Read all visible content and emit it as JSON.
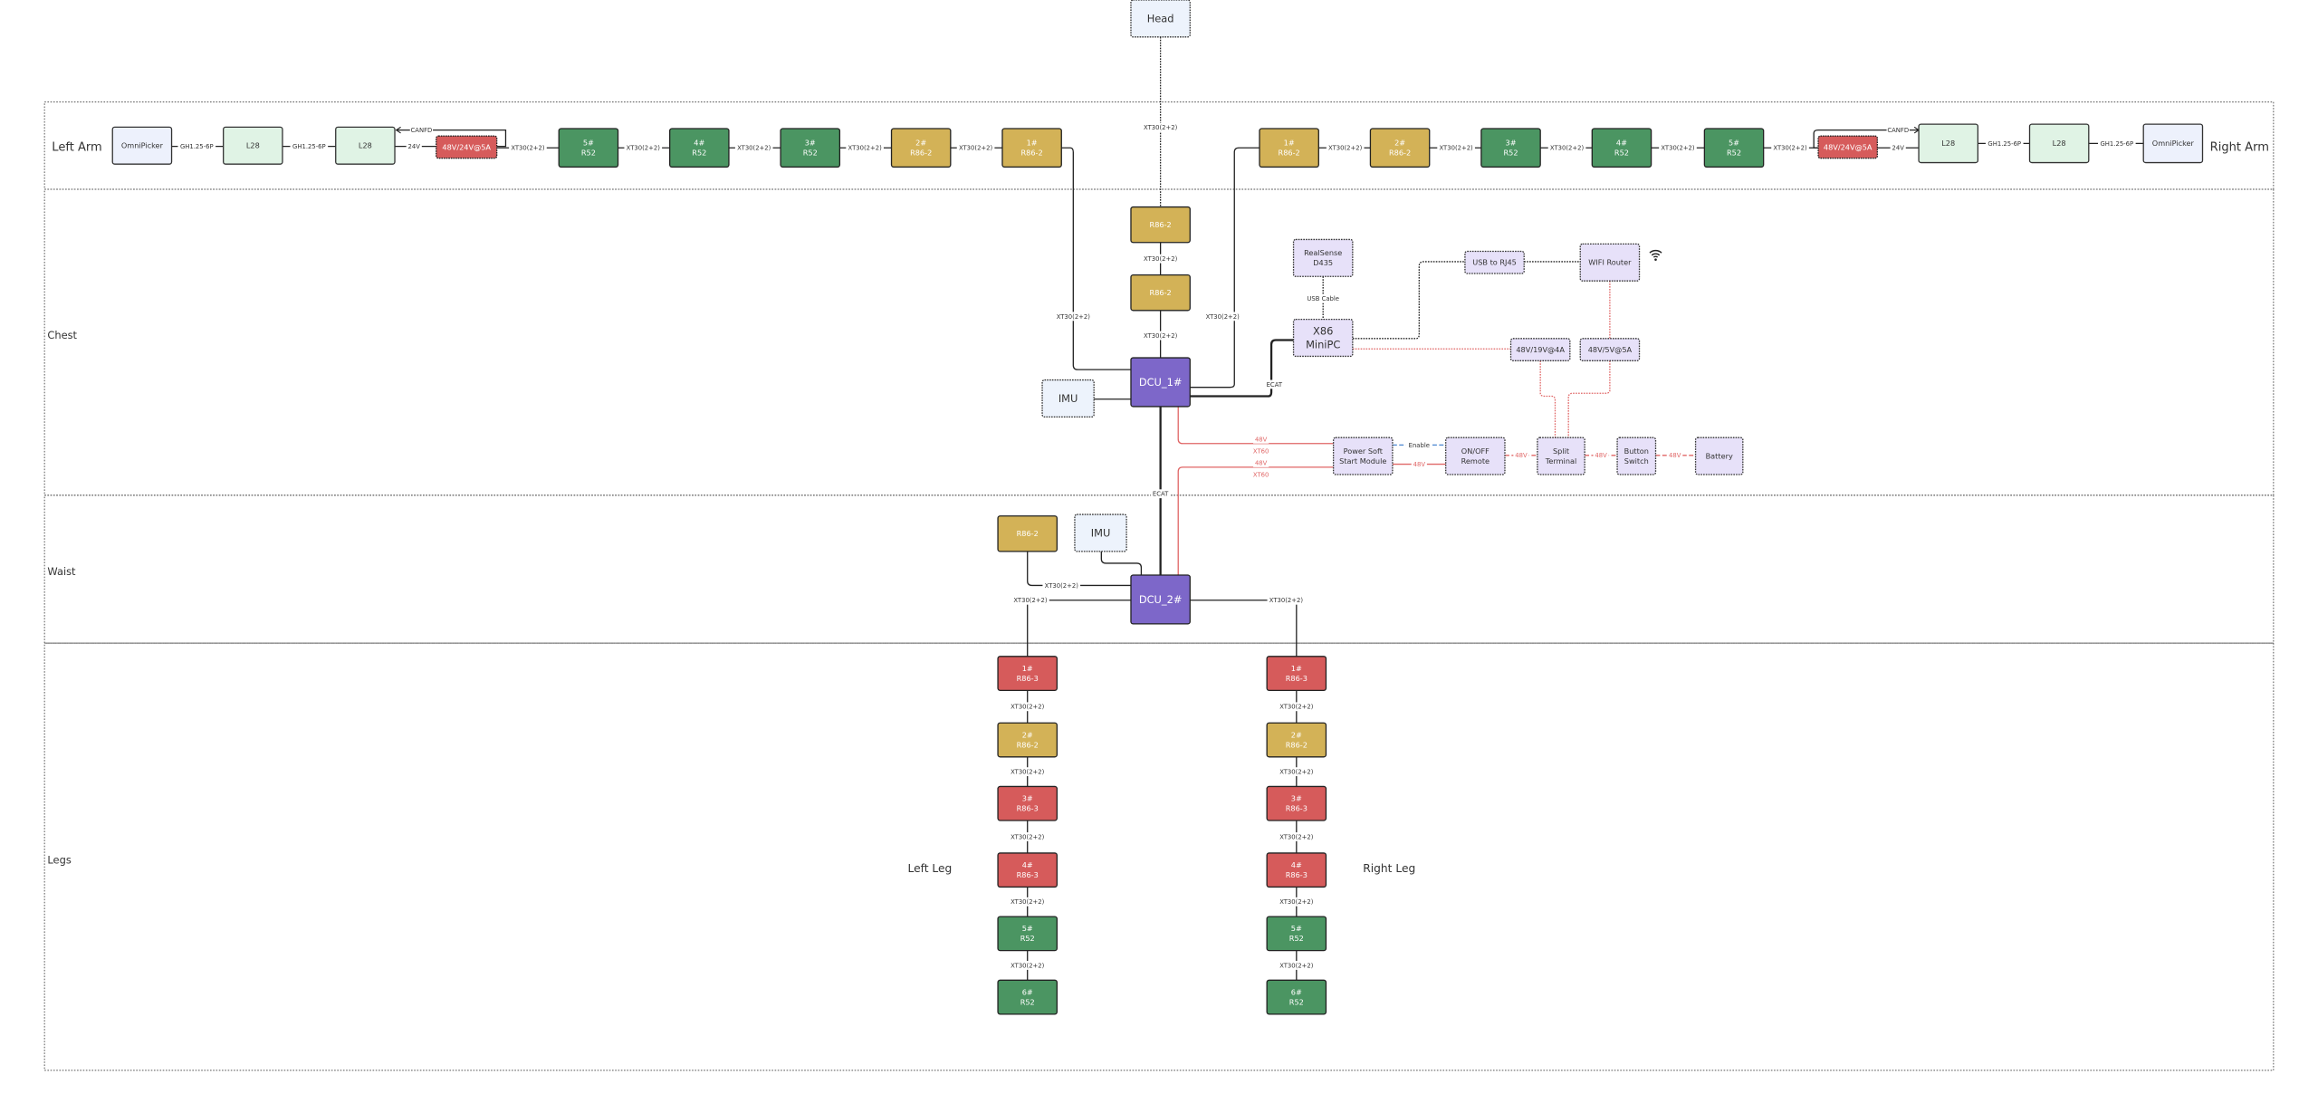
{
  "regions": {
    "left_arm": "Left Arm",
    "right_arm": "Right Arm",
    "chest": "Chest",
    "waist": "Waist",
    "legs": "Legs",
    "left_leg": "Left Leg",
    "right_leg": "Right Leg"
  },
  "colors": {
    "r52": "#4b9562",
    "r86_2": "#d3b257",
    "r86_3": "#d65b5b",
    "dcu": "#7d67c9",
    "converter": "#d65b5b",
    "l28": "#e0f3e5",
    "omnipicker": "#edf1fc",
    "module": "#e7e1f9",
    "imu": "#edf3fc",
    "power_line": "#e06666",
    "enable_line": "#4a86d0"
  },
  "nodes": {
    "head": {
      "lines": [
        "Head"
      ],
      "kind": "imu"
    },
    "la_omni": {
      "lines": [
        "OmniPicker"
      ],
      "kind": "omnipicker"
    },
    "la_l28a": {
      "lines": [
        "L28"
      ],
      "kind": "l28"
    },
    "la_l28b": {
      "lines": [
        "L28"
      ],
      "kind": "l28"
    },
    "la_conv": {
      "lines": [
        "48V/24V@5A"
      ],
      "kind": "converter"
    },
    "la_5": {
      "lines": [
        "5#",
        "R52"
      ],
      "kind": "r52"
    },
    "la_4": {
      "lines": [
        "4#",
        "R52"
      ],
      "kind": "r52"
    },
    "la_3": {
      "lines": [
        "3#",
        "R52"
      ],
      "kind": "r52"
    },
    "la_2": {
      "lines": [
        "2#",
        "R86-2"
      ],
      "kind": "r86_2"
    },
    "la_1": {
      "lines": [
        "1#",
        "R86-2"
      ],
      "kind": "r86_2"
    },
    "ra_1": {
      "lines": [
        "1#",
        "R86-2"
      ],
      "kind": "r86_2"
    },
    "ra_2": {
      "lines": [
        "2#",
        "R86-2"
      ],
      "kind": "r86_2"
    },
    "ra_3": {
      "lines": [
        "3#",
        "R52"
      ],
      "kind": "r52"
    },
    "ra_4": {
      "lines": [
        "4#",
        "R52"
      ],
      "kind": "r52"
    },
    "ra_5": {
      "lines": [
        "5#",
        "R52"
      ],
      "kind": "r52"
    },
    "ra_conv": {
      "lines": [
        "48V/24V@5A"
      ],
      "kind": "converter"
    },
    "ra_l28a": {
      "lines": [
        "L28"
      ],
      "kind": "l28"
    },
    "ra_l28b": {
      "lines": [
        "L28"
      ],
      "kind": "l28"
    },
    "ra_omni": {
      "lines": [
        "OmniPicker"
      ],
      "kind": "omnipicker"
    },
    "neck_1": {
      "lines": [
        "R86-2"
      ],
      "kind": "r86_2"
    },
    "neck_2": {
      "lines": [
        "R86-2"
      ],
      "kind": "r86_2"
    },
    "dcu1": {
      "lines": [
        "DCU_1#"
      ],
      "kind": "dcu"
    },
    "imu1": {
      "lines": [
        "IMU"
      ],
      "kind": "imu"
    },
    "realsense": {
      "lines": [
        "RealSense",
        "D435"
      ],
      "kind": "module"
    },
    "minipc": {
      "lines": [
        "X86",
        "MiniPC"
      ],
      "kind": "module"
    },
    "usb_rj45": {
      "lines": [
        "USB to RJ45"
      ],
      "kind": "module"
    },
    "wifi": {
      "lines": [
        "WIFI Router"
      ],
      "kind": "module"
    },
    "conv19": {
      "lines": [
        "48V/19V@4A"
      ],
      "kind": "module"
    },
    "conv5": {
      "lines": [
        "48V/5V@5A"
      ],
      "kind": "module"
    },
    "softstart": {
      "lines": [
        "Power Soft",
        "Start Module"
      ],
      "kind": "module"
    },
    "onoff": {
      "lines": [
        "ON/OFF",
        "Remote"
      ],
      "kind": "module"
    },
    "split": {
      "lines": [
        "Split",
        "Terminal"
      ],
      "kind": "module"
    },
    "button": {
      "lines": [
        "Button",
        "Switch"
      ],
      "kind": "module"
    },
    "battery": {
      "lines": [
        "Battery"
      ],
      "kind": "module"
    },
    "waist_r86": {
      "lines": [
        "R86-2"
      ],
      "kind": "r86_2"
    },
    "imu2": {
      "lines": [
        "IMU"
      ],
      "kind": "imu"
    },
    "dcu2": {
      "lines": [
        "DCU_2#"
      ],
      "kind": "dcu"
    },
    "ll_1": {
      "lines": [
        "1#",
        "R86-3"
      ],
      "kind": "r86_3"
    },
    "ll_2": {
      "lines": [
        "2#",
        "R86-2"
      ],
      "kind": "r86_2"
    },
    "ll_3": {
      "lines": [
        "3#",
        "R86-3"
      ],
      "kind": "r86_3"
    },
    "ll_4": {
      "lines": [
        "4#",
        "R86-3"
      ],
      "kind": "r86_3"
    },
    "ll_5": {
      "lines": [
        "5#",
        "R52"
      ],
      "kind": "r52"
    },
    "ll_6": {
      "lines": [
        "6#",
        "R52"
      ],
      "kind": "r52"
    },
    "rl_1": {
      "lines": [
        "1#",
        "R86-3"
      ],
      "kind": "r86_3"
    },
    "rl_2": {
      "lines": [
        "2#",
        "R86-2"
      ],
      "kind": "r86_2"
    },
    "rl_3": {
      "lines": [
        "3#",
        "R86-3"
      ],
      "kind": "r86_3"
    },
    "rl_4": {
      "lines": [
        "4#",
        "R86-3"
      ],
      "kind": "r86_3"
    },
    "rl_5": {
      "lines": [
        "5#",
        "R52"
      ],
      "kind": "r52"
    },
    "rl_6": {
      "lines": [
        "6#",
        "R52"
      ],
      "kind": "r52"
    }
  },
  "edges": [
    {
      "id": "e_la1",
      "label": "GH1.25-6P"
    },
    {
      "id": "e_la2",
      "label": "GH1.25-6P"
    },
    {
      "id": "e_la3",
      "label": "24V"
    },
    {
      "id": "e_la_can",
      "label": "CANFD"
    },
    {
      "id": "e_la4",
      "label": "XT30(2+2)"
    },
    {
      "id": "e_la5",
      "label": "XT30(2+2)"
    },
    {
      "id": "e_la6",
      "label": "XT30(2+2)"
    },
    {
      "id": "e_la7",
      "label": "XT30(2+2)"
    },
    {
      "id": "e_la8",
      "label": "XT30(2+2)"
    },
    {
      "id": "e_ra1",
      "label": "XT30(2+2)"
    },
    {
      "id": "e_ra2",
      "label": "XT30(2+2)"
    },
    {
      "id": "e_ra3",
      "label": "XT30(2+2)"
    },
    {
      "id": "e_ra4",
      "label": "XT30(2+2)"
    },
    {
      "id": "e_ra5",
      "label": "XT30(2+2)"
    },
    {
      "id": "e_ra_can",
      "label": "CANFD"
    },
    {
      "id": "e_ra6",
      "label": "24V"
    },
    {
      "id": "e_ra7",
      "label": "GH1.25-6P"
    },
    {
      "id": "e_ra8",
      "label": "GH1.25-6P"
    },
    {
      "id": "e_head",
      "label": "XT30(2+2)"
    },
    {
      "id": "e_neck1",
      "label": "XT30(2+2)"
    },
    {
      "id": "e_neck2",
      "label": "XT30(2+2)"
    },
    {
      "id": "e_la_dcu",
      "label": "XT30(2+2)"
    },
    {
      "id": "e_ra_dcu",
      "label": "XT30(2+2)"
    },
    {
      "id": "e_imu1",
      "label": ""
    },
    {
      "id": "e_ecat_pc",
      "label": "ECAT"
    },
    {
      "id": "e_usb",
      "label": "USB Cable"
    },
    {
      "id": "e_pc_rj45",
      "label": ""
    },
    {
      "id": "e_rj45_wifi",
      "label": ""
    },
    {
      "id": "e_pc_19",
      "label": ""
    },
    {
      "id": "e_wifi_5",
      "label": ""
    },
    {
      "id": "e_19_split",
      "label": ""
    },
    {
      "id": "e_5_split",
      "label": ""
    },
    {
      "id": "e_pwr1",
      "label": "48V",
      "label2": "XT60"
    },
    {
      "id": "e_pwr2",
      "label": "48V",
      "label2": "XT60"
    },
    {
      "id": "e_enable",
      "label": "Enable"
    },
    {
      "id": "e_soft_onoff",
      "label": "48V"
    },
    {
      "id": "e_onoff_split",
      "label": "48V"
    },
    {
      "id": "e_split_button",
      "label": "48V"
    },
    {
      "id": "e_button_batt",
      "label": "48V"
    },
    {
      "id": "e_ecat_dcu2",
      "label": "ECAT"
    },
    {
      "id": "e_waist_r86",
      "label": "XT30(2+2)"
    },
    {
      "id": "e_imu2",
      "label": ""
    },
    {
      "id": "e_dcu2_ll",
      "label": "XT30(2+2)"
    },
    {
      "id": "e_dcu2_rl",
      "label": "XT30(2+2)"
    },
    {
      "id": "e_ll1",
      "label": "XT30(2+2)"
    },
    {
      "id": "e_ll2",
      "label": "XT30(2+2)"
    },
    {
      "id": "e_ll3",
      "label": "XT30(2+2)"
    },
    {
      "id": "e_ll4",
      "label": "XT30(2+2)"
    },
    {
      "id": "e_ll5",
      "label": "XT30(2+2)"
    },
    {
      "id": "e_rl1",
      "label": "XT30(2+2)"
    },
    {
      "id": "e_rl2",
      "label": "XT30(2+2)"
    },
    {
      "id": "e_rl3",
      "label": "XT30(2+2)"
    },
    {
      "id": "e_rl4",
      "label": "XT30(2+2)"
    },
    {
      "id": "e_rl5",
      "label": "XT30(2+2)"
    }
  ],
  "icons": {
    "wifi": "wifi-icon"
  }
}
